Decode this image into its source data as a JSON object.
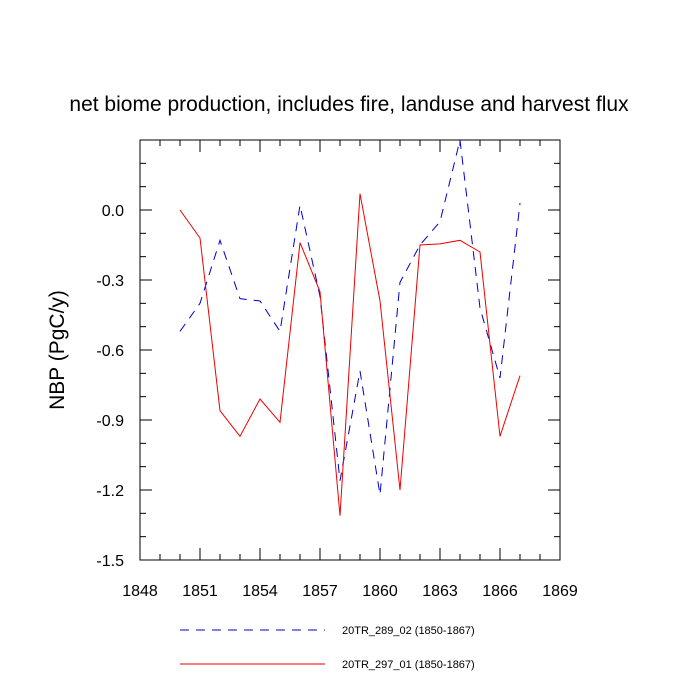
{
  "chart_data": {
    "type": "line",
    "title": "net biome production, includes fire, landuse and harvest flux",
    "xlabel": "",
    "ylabel": "NBP  (PgC/y)",
    "xlim": [
      1848,
      1869
    ],
    "ylim": [
      -1.5,
      0.3
    ],
    "xticks": [
      "1848",
      "1851",
      "1854",
      "1857",
      "1860",
      "1863",
      "1866",
      "1869"
    ],
    "yticks": [
      "0.0",
      "-0.3",
      "-0.6",
      "-0.9",
      "-1.2",
      "-1.5"
    ],
    "x": [
      1850,
      1851,
      1852,
      1853,
      1854,
      1855,
      1856,
      1857,
      1858,
      1859,
      1860,
      1861,
      1862,
      1863,
      1864,
      1865,
      1866,
      1867
    ],
    "series": [
      {
        "name": "20TR_289_02 (1850-1867)",
        "color": "#0000cc",
        "dash": "dashed",
        "values": [
          -0.52,
          -0.4,
          -0.13,
          -0.38,
          -0.39,
          -0.52,
          0.02,
          -0.37,
          -1.16,
          -0.69,
          -1.22,
          -0.31,
          -0.15,
          -0.05,
          0.3,
          -0.42,
          -0.72,
          0.03
        ]
      },
      {
        "name": "20TR_297_01 (1850-1867)",
        "color": "#ee0000",
        "dash": "solid",
        "values": [
          0.0,
          -0.12,
          -0.86,
          -0.97,
          -0.81,
          -0.91,
          -0.14,
          -0.35,
          -1.31,
          0.07,
          -0.39,
          -1.2,
          -0.15,
          -0.145,
          -0.13,
          -0.18,
          -0.97,
          -0.71
        ]
      }
    ],
    "legend": "bottom"
  }
}
